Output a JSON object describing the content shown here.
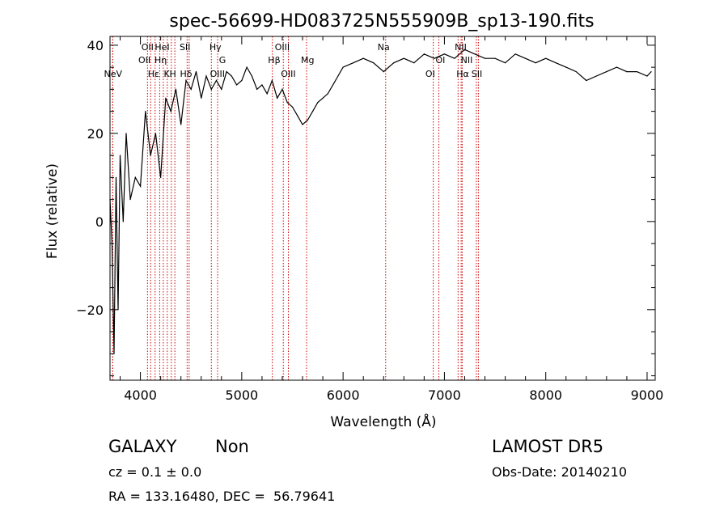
{
  "chart_data": {
    "type": "line",
    "title": "spec-56699-HD083725N555909B_sp13-190.fits",
    "xlabel": "Wavelength (Å)",
    "ylabel": "Flux (relative)",
    "xlim": [
      3700,
      9080
    ],
    "ylim": [
      -36,
      42
    ],
    "x_ticks": [
      4000,
      5000,
      6000,
      7000,
      8000,
      9000
    ],
    "x_tick_labels": [
      "4000",
      "5000",
      "6000",
      "7000",
      "8000",
      "9000"
    ],
    "y_ticks": [
      -20,
      0,
      20,
      40
    ],
    "y_tick_labels": [
      "−20",
      "0",
      "20",
      "40"
    ],
    "grid": false,
    "series": [
      {
        "x": [
          3700,
          3720,
          3740,
          3760,
          3780,
          3800,
          3830,
          3860,
          3900,
          3950,
          4000,
          4050,
          4100,
          4150,
          4200,
          4250,
          4300,
          4350,
          4400,
          4450,
          4500,
          4550,
          4600,
          4650,
          4700,
          4750,
          4800,
          4850,
          4900,
          4950,
          5000,
          5050,
          5100,
          5150,
          5200,
          5250,
          5300,
          5350,
          5400,
          5450,
          5500,
          5550,
          5600,
          5650,
          5700,
          5750,
          5800,
          5850,
          5900,
          5950,
          6000,
          6100,
          6200,
          6300,
          6400,
          6450,
          6500,
          6600,
          6700,
          6800,
          6900,
          7000,
          7100,
          7200,
          7300,
          7400,
          7500,
          7600,
          7700,
          7800,
          7900,
          8000,
          8100,
          8200,
          8300,
          8400,
          8500,
          8600,
          8700,
          8800,
          8900,
          9000,
          9040
        ],
        "y": [
          5,
          -5,
          -30,
          10,
          -20,
          15,
          0,
          20,
          5,
          10,
          8,
          25,
          15,
          20,
          10,
          28,
          25,
          30,
          22,
          32,
          30,
          34,
          28,
          33,
          30,
          32,
          30,
          34,
          33,
          31,
          32,
          35,
          33,
          30,
          31,
          29,
          32,
          28,
          30,
          27,
          26,
          24,
          22,
          23,
          25,
          27,
          28,
          29,
          31,
          33,
          35,
          36,
          37,
          36,
          34,
          35,
          36,
          37,
          36,
          38,
          37,
          38,
          37,
          39,
          38,
          37,
          37,
          36,
          38,
          37,
          36,
          37,
          36,
          35,
          34,
          32,
          33,
          34,
          35,
          34,
          34,
          33,
          34
        ]
      }
    ],
    "lines": [
      {
        "label": "NeV",
        "x": 3726
      },
      {
        "label": "OII",
        "x": 3727
      },
      {
        "label": "OII",
        "x": 4070
      },
      {
        "label": "Hε",
        "x": 4101
      },
      {
        "label": "Hη",
        "x": 4145
      },
      {
        "label": "HeI",
        "x": 4190
      },
      {
        "label": "K",
        "x": 4226
      },
      {
        "label": "H",
        "x": 4265
      },
      {
        "label": "SII",
        "x": 4305
      },
      {
        "label": "Hδ",
        "x": 4340
      },
      {
        "label": "Hγ",
        "x": 4461
      },
      {
        "label": "G",
        "x": 4481
      },
      {
        "label": "OIII",
        "x": 4700
      },
      {
        "label": "Hβ",
        "x": 4762
      },
      {
        "label": "OIII",
        "x": 5302
      },
      {
        "label": "OIII",
        "x": 5410
      },
      {
        "label": "Mg",
        "x": 5460
      },
      {
        "label": "Na",
        "x": 5640
      },
      {
        "label": "OI",
        "x": 6420
      },
      {
        "label": "NII",
        "x": 6890
      },
      {
        "label": "Hα",
        "x": 6945
      },
      {
        "label": "SII",
        "x": 7135
      },
      {
        "label": "SII",
        "x": 7165
      },
      {
        "label": "NII",
        "x": 7175
      },
      {
        "label": "",
        "x": 7315
      },
      {
        "label": "",
        "x": 7335
      }
    ],
    "line_labels_row1": [
      {
        "text": "OII",
        "x": 4070
      },
      {
        "text": "HeI",
        "x": 4215
      },
      {
        "text": "SII",
        "x": 4440
      },
      {
        "text": "Hγ",
        "x": 4740
      },
      {
        "text": "OIII",
        "x": 5400
      },
      {
        "text": "Na",
        "x": 6400
      },
      {
        "text": "NII",
        "x": 7160
      },
      {
        "text": "",
        "x": 7330
      }
    ],
    "line_labels_row2": [
      {
        "text": "OII",
        "x": 4040
      },
      {
        "text": "Hη",
        "x": 4200
      },
      {
        "text": "G",
        "x": 4810
      },
      {
        "text": "Hβ",
        "x": 5320
      },
      {
        "text": "Mg",
        "x": 5650
      },
      {
        "text": "OI",
        "x": 6960
      },
      {
        "text": "NII",
        "x": 7220
      },
      {
        "text": "",
        "x": 7330
      }
    ],
    "line_labels_row3": [
      {
        "text": "NeV",
        "x": 3730
      },
      {
        "text": "Hε",
        "x": 4130
      },
      {
        "text": "K",
        "x": 4260
      },
      {
        "text": "H",
        "x": 4320
      },
      {
        "text": "Hδ",
        "x": 4450
      },
      {
        "text": "OIII",
        "x": 4760
      },
      {
        "text": "OIII",
        "x": 5460
      },
      {
        "text": "OI",
        "x": 6860
      },
      {
        "text": "Hα",
        "x": 7180
      },
      {
        "text": "SII",
        "x": 7320
      }
    ],
    "info": {
      "class": "GALAXY",
      "subclass": "Non",
      "cz": "cz = 0.1 ± 0.0",
      "radec": "RA = 133.16480, DEC =  56.79641",
      "survey": "LAMOST DR5",
      "obsdate": "Obs-Date: 20140210"
    }
  },
  "colors": {
    "spectrum": "#000000",
    "line_markers": "#cc0000",
    "axes": "#000000"
  }
}
